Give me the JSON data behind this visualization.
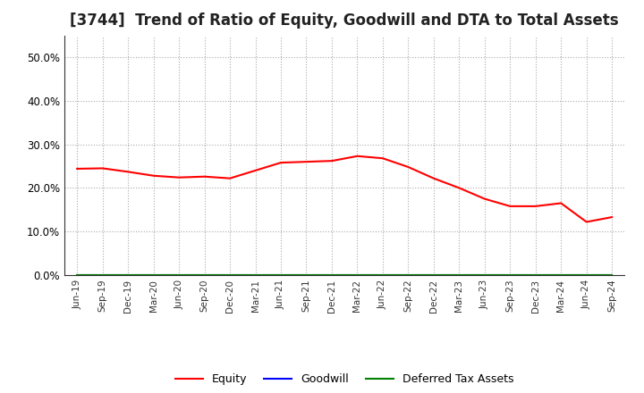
{
  "title": "[3744]  Trend of Ratio of Equity, Goodwill and DTA to Total Assets",
  "x_labels": [
    "Jun-19",
    "Sep-19",
    "Dec-19",
    "Mar-20",
    "Jun-20",
    "Sep-20",
    "Dec-20",
    "Mar-21",
    "Jun-21",
    "Sep-21",
    "Dec-21",
    "Mar-22",
    "Jun-22",
    "Sep-22",
    "Dec-22",
    "Mar-23",
    "Jun-23",
    "Sep-23",
    "Dec-23",
    "Mar-24",
    "Jun-24",
    "Sep-24"
  ],
  "equity": [
    0.244,
    0.245,
    0.237,
    0.228,
    0.224,
    0.226,
    0.222,
    0.24,
    0.258,
    0.26,
    0.262,
    0.273,
    0.268,
    0.248,
    0.222,
    0.2,
    0.175,
    0.158,
    0.158,
    0.165,
    0.122,
    0.133
  ],
  "goodwill": [
    0.001,
    0.001,
    0.001,
    0.001,
    0.001,
    0.001,
    0.001,
    0.001,
    0.001,
    0.001,
    0.001,
    0.001,
    0.001,
    0.001,
    0.001,
    0.001,
    0.001,
    0.001,
    0.001,
    0.001,
    0.001,
    0.001
  ],
  "dta": [
    0.0,
    0.0,
    0.0,
    0.0,
    0.0,
    0.0,
    0.0,
    0.0,
    0.0,
    0.0,
    0.0,
    0.0,
    0.0,
    0.0,
    0.0,
    0.0,
    0.0,
    0.0,
    0.0,
    0.0,
    0.0,
    0.0
  ],
  "equity_color": "#FF0000",
  "goodwill_color": "#0000FF",
  "dta_color": "#008000",
  "ylim": [
    0.0,
    0.55
  ],
  "yticks": [
    0.0,
    0.1,
    0.2,
    0.3,
    0.4,
    0.5
  ],
  "background_color": "#FFFFFF",
  "plot_bg_color": "#FFFFFF",
  "grid_color": "#AAAAAA",
  "title_fontsize": 12,
  "legend_labels": [
    "Equity",
    "Goodwill",
    "Deferred Tax Assets"
  ]
}
